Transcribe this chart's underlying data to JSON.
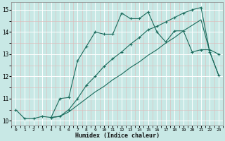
{
  "xlabel": "Humidex (Indice chaleur)",
  "bg_color": "#c8e8e5",
  "grid_white_color": "#e8f5f4",
  "grid_pink_color": "#e8c8c8",
  "line_color": "#1a6b5c",
  "xlim": [
    -0.5,
    23.5
  ],
  "ylim": [
    9.8,
    15.35
  ],
  "xticks": [
    0,
    1,
    2,
    3,
    4,
    5,
    6,
    7,
    8,
    9,
    10,
    11,
    12,
    13,
    14,
    15,
    16,
    17,
    18,
    19,
    20,
    21,
    22,
    23
  ],
  "yticks": [
    10,
    11,
    12,
    13,
    14,
    15
  ],
  "curve1_x": [
    0,
    1,
    2,
    3,
    4,
    5,
    6,
    7,
    8,
    9,
    10,
    11,
    12,
    13,
    14,
    15,
    16,
    17,
    18,
    19,
    20,
    21,
    22,
    23
  ],
  "curve1_y": [
    10.5,
    10.1,
    10.1,
    10.2,
    10.15,
    11.0,
    11.05,
    12.7,
    13.35,
    14.0,
    13.9,
    13.9,
    14.85,
    14.6,
    14.6,
    14.9,
    14.0,
    13.55,
    14.05,
    14.05,
    13.1,
    13.2,
    13.2,
    13.0
  ],
  "curve2_x": [
    4,
    5,
    6,
    7,
    8,
    9,
    10,
    11,
    12,
    13,
    14,
    15,
    16,
    17,
    18,
    19,
    20,
    21,
    22,
    23
  ],
  "curve2_y": [
    10.15,
    10.2,
    10.5,
    11.0,
    11.6,
    12.0,
    12.45,
    12.8,
    13.1,
    13.45,
    13.75,
    14.1,
    14.25,
    14.45,
    14.65,
    14.85,
    15.0,
    15.1,
    13.1,
    12.05
  ],
  "curve3_x": [
    4,
    5,
    6,
    7,
    8,
    9,
    10,
    11,
    12,
    13,
    14,
    15,
    16,
    17,
    18,
    19,
    20,
    21,
    22,
    23
  ],
  "curve3_y": [
    10.15,
    10.2,
    10.4,
    10.7,
    11.0,
    11.3,
    11.55,
    11.85,
    12.1,
    12.4,
    12.65,
    12.95,
    13.2,
    13.5,
    13.75,
    14.05,
    14.3,
    14.55,
    13.1,
    12.05
  ]
}
